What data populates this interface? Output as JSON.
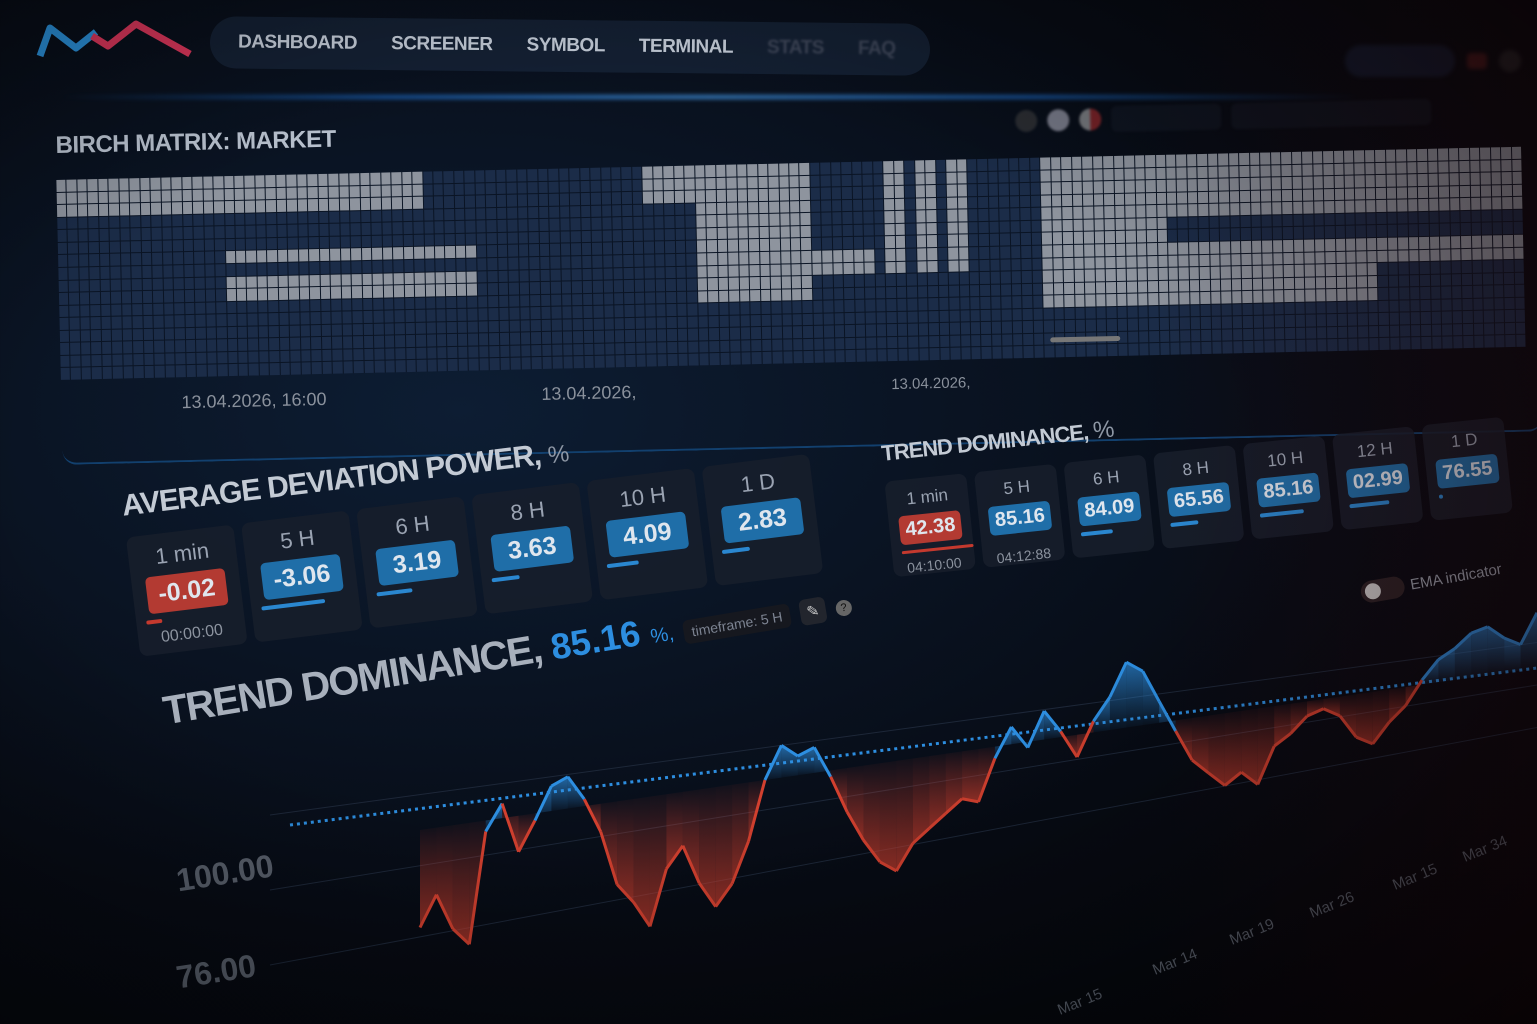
{
  "nav": {
    "items": [
      "DASHBOARD",
      "SCREENER",
      "SYMBOL",
      "TERMINAL",
      "STATS",
      "FAQ"
    ]
  },
  "matrix": {
    "title": "BIRCH MATRIX: MARKET",
    "x_labels": [
      "13.04.2026, 16:00",
      "13.04.2026,",
      "13.04.2026,"
    ]
  },
  "adp": {
    "title": "AVERAGE DEVIATION POWER,",
    "unit": "%",
    "cards": [
      {
        "label": "1 min",
        "value": "-0.02",
        "time": "00:00:00",
        "negative": true,
        "fill": 0.2
      },
      {
        "label": "5 H",
        "value": "-3.06",
        "negative": false,
        "fill": 0.8
      },
      {
        "label": "6 H",
        "value": "3.19",
        "negative": false,
        "fill": 0.45
      },
      {
        "label": "8 H",
        "value": "3.63",
        "negative": false,
        "fill": 0.35
      },
      {
        "label": "10 H",
        "value": "4.09",
        "negative": false,
        "fill": 0.4
      },
      {
        "label": "1 D",
        "value": "2.83",
        "negative": false,
        "fill": 0.35
      }
    ]
  },
  "td": {
    "title": "TREND DOMINANCE,",
    "unit": "%",
    "cards": [
      {
        "label": "1 min",
        "value": "42.38",
        "time": "04:10:00",
        "negative": true,
        "fill": 0.9
      },
      {
        "label": "5 H",
        "value": "85.16",
        "time": "04:12:88",
        "negative": false,
        "fill": 0
      },
      {
        "label": "6 H",
        "value": "84.09",
        "negative": false,
        "fill": 0.4
      },
      {
        "label": "8 H",
        "value": "65.56",
        "negative": false,
        "fill": 0.35
      },
      {
        "label": "10 H",
        "value": "85.16",
        "negative": false,
        "fill": 0.55
      },
      {
        "label": "12 H",
        "value": "02.99",
        "negative": false,
        "fill": 0.5
      },
      {
        "label": "1 D",
        "value": "76.55",
        "negative": false,
        "fill": 0.05
      }
    ],
    "ema_label": "EMA indicator",
    "ema_on": false
  },
  "chart_section": {
    "title": "TREND DOMINANCE,",
    "value": "85.16",
    "unit": "%,",
    "timeframe": "timeframe: 5 H",
    "edit_icon": "pencil-icon",
    "help_icon": "question-icon"
  },
  "chart_data": {
    "type": "area",
    "y_tick_labels": [
      "100.00",
      "76.00"
    ],
    "x_tick_labels": [
      "Mar 15",
      "Mar 14",
      "Mar 19",
      "Mar 26",
      "Mar 15",
      "Mar 34"
    ],
    "threshold": 88,
    "values": [
      62,
      70,
      60,
      55,
      85,
      92,
      78,
      86,
      95,
      97,
      90,
      80,
      64,
      58,
      50,
      66,
      72,
      60,
      52,
      58,
      70,
      88,
      98,
      94,
      96,
      86,
      74,
      64,
      56,
      52,
      60,
      64,
      68,
      72,
      70,
      84,
      94,
      86,
      98,
      90,
      80,
      92,
      100,
      112,
      108,
      96,
      84,
      72,
      66,
      60,
      64,
      58,
      72,
      76,
      82,
      84,
      80,
      70,
      66,
      74,
      80,
      90,
      98,
      102,
      108,
      110,
      104,
      100,
      114
    ],
    "colors": {
      "above": "#2d8ee0",
      "below": "#d2402f"
    }
  }
}
